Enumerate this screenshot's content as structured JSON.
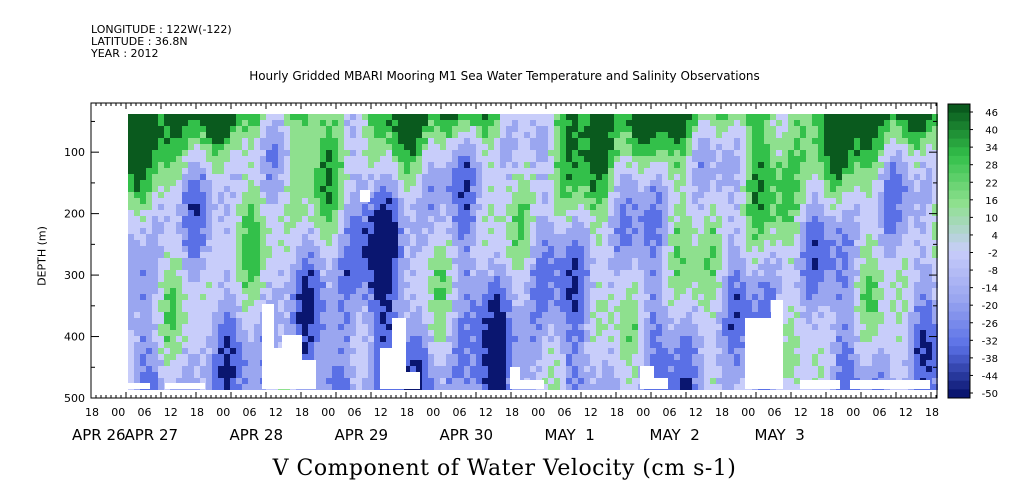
{
  "meta": {
    "longitude": "LONGITUDE : 122W(-122)",
    "latitude": "LATITUDE : 36.8N",
    "year": "YEAR : 2012"
  },
  "chart_data": {
    "type": "heatmap",
    "title": "Hourly Gridded MBARI Mooring M1 Sea Water Temperature and Salinity Observations",
    "xlabel": "V Component of Water Velocity (cm s-1)",
    "ylabel": "DEPTH (m)",
    "y_range": [
      500,
      20
    ],
    "y_ticks": [
      100,
      200,
      300,
      400,
      500
    ],
    "x_hour_ticks": [
      "18",
      "00",
      "06",
      "12",
      "18",
      "00",
      "06",
      "12",
      "18",
      "00",
      "06",
      "12",
      "18",
      "00",
      "06",
      "12",
      "18",
      "00",
      "06",
      "12",
      "18",
      "00",
      "06",
      "12",
      "18",
      "00",
      "06",
      "12",
      "18",
      "00",
      "06",
      "12",
      "18"
    ],
    "x_date_labels": [
      {
        "text": "APR 26",
        "tick_index": 0
      },
      {
        "text": "APR 27",
        "tick_index": 2
      },
      {
        "text": "APR 28",
        "tick_index": 6
      },
      {
        "text": "APR 29",
        "tick_index": 10
      },
      {
        "text": "APR 30",
        "tick_index": 14
      },
      {
        "text": "MAY  1",
        "tick_index": 18
      },
      {
        "text": "MAY  2",
        "tick_index": 22
      },
      {
        "text": "MAY  3",
        "tick_index": 26
      }
    ],
    "colorbar": {
      "min": -50,
      "max": 50,
      "labels": [
        "46",
        "40",
        "34",
        "28",
        "22",
        "16",
        "10",
        "4",
        "-2",
        "-8",
        "-14",
        "-20",
        "-26",
        "-32",
        "-38",
        "-44",
        "-50"
      ]
    },
    "colors": {
      "strong_positive": "#0a5a1e",
      "positive": "#33c04a",
      "weak_positive": "#8ee08e",
      "near_zero": "#c8cdfa",
      "weak_negative": "#9aa6f0",
      "negative": "#5a70e6",
      "strong_negative": "#0a1670"
    }
  }
}
